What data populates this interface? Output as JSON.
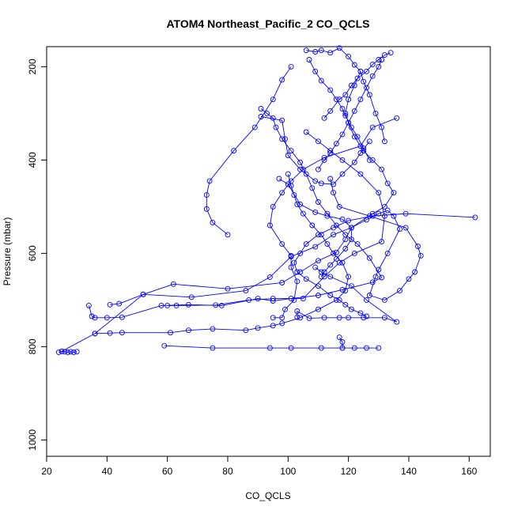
{
  "chart_data": {
    "type": "line",
    "title": "ATOM4 Northeast_Pacific_2 CO_QCLS",
    "xlabel": "CO_QCLS",
    "ylabel": "Pressure (mbar)",
    "xlim": [
      20,
      167
    ],
    "ylim": [
      1035,
      157
    ],
    "y_reversed": true,
    "x_ticks": [
      20,
      40,
      60,
      80,
      100,
      120,
      140,
      160
    ],
    "y_ticks": [
      200,
      400,
      600,
      800,
      1000
    ],
    "series_color": "#0000ff",
    "marker": "open-circle",
    "grid": false,
    "series": [
      {
        "x": [
          24,
          25,
          26,
          27,
          28,
          29,
          30
        ],
        "y": [
          812,
          810,
          811,
          812,
          811,
          812,
          811
        ]
      },
      {
        "x": [
          25,
          36,
          52,
          62,
          80,
          98,
          104,
          110,
          116,
          119,
          121,
          126,
          130,
          133,
          135,
          137,
          133,
          130,
          129,
          127,
          132,
          137,
          140,
          142,
          144,
          143,
          139,
          127,
          117,
          115,
          114
        ],
        "y": [
          810,
          772,
          688,
          666,
          676,
          663,
          640,
          616,
          598,
          570,
          545,
          528,
          515,
          508,
          520,
          548,
          600,
          635,
          650,
          690,
          700,
          680,
          655,
          640,
          605,
          585,
          545,
          520,
          500,
          470,
          440
        ]
      },
      {
        "x": [
          36,
          41,
          45,
          61,
          67,
          75,
          86,
          90,
          95,
          98,
          104,
          110,
          116,
          119,
          120,
          118,
          115,
          113,
          111,
          108,
          105,
          103,
          102,
          101,
          100
        ],
        "y": [
          772,
          771,
          770,
          770,
          765,
          762,
          765,
          760,
          755,
          750,
          738,
          720,
          700,
          680,
          650,
          620,
          600,
          580,
          560,
          540,
          515,
          495,
          475,
          455,
          430
        ]
      },
      {
        "x": [
          34,
          35,
          36,
          40,
          45,
          58,
          67,
          78,
          90,
          95,
          101,
          110,
          118,
          128,
          131,
          127,
          123,
          119,
          116,
          113,
          110,
          108,
          106,
          104,
          101,
          98,
          96,
          95,
          93,
          91
        ],
        "y": [
          712,
          735,
          738,
          738,
          737,
          712,
          710,
          712,
          697,
          702,
          697,
          690,
          678,
          662,
          652,
          610,
          580,
          560,
          540,
          515,
          490,
          460,
          430,
          405,
          380,
          355,
          330,
          310,
          300,
          290
        ]
      },
      {
        "x": [
          41,
          44,
          52,
          68,
          86,
          94,
          101,
          109,
          115,
          121,
          128,
          132,
          135,
          133,
          131,
          128,
          125,
          122,
          120,
          119,
          120,
          122,
          124
        ],
        "y": [
          710,
          708,
          688,
          694,
          680,
          651,
          607,
          586,
          560,
          545,
          515,
          500,
          470,
          450,
          420,
          400,
          380,
          350,
          320,
          300,
          270,
          240,
          210
        ]
      },
      {
        "x": [
          60,
          63,
          76,
          87,
          95,
          105,
          112,
          117,
          122,
          131,
          132,
          130,
          124,
          118,
          114,
          110,
          106
        ],
        "y": [
          712,
          712,
          711,
          700,
          697,
          697,
          650,
          620,
          600,
          575,
          520,
          470,
          430,
          400,
          380,
          360,
          340
        ]
      },
      {
        "x": [
          59,
          75,
          94,
          101,
          111,
          118,
          122,
          126,
          130
        ],
        "y": [
          798,
          803,
          803,
          803,
          803,
          803,
          803,
          803,
          803
        ]
      },
      {
        "x": [
          118,
          118,
          117
        ],
        "y": [
          803,
          790,
          780
        ]
      },
      {
        "x": [
          103,
          103,
          107,
          112,
          117,
          120,
          125,
          132,
          136,
          126,
          121,
          114,
          111,
          109
        ],
        "y": [
          737,
          724,
          739,
          738,
          738,
          738,
          738,
          738,
          747,
          700,
          670,
          650,
          640,
          630
        ]
      },
      {
        "x": [
          95,
          98,
          99,
          102,
          103,
          101,
          101,
          98,
          94,
          95,
          98,
          101,
          105,
          112,
          124,
          128,
          136
        ],
        "y": [
          738,
          738,
          720,
          700,
          660,
          630,
          605,
          580,
          540,
          500,
          470,
          445,
          420,
          395,
          370,
          330,
          310
        ]
      },
      {
        "x": [
          80,
          75,
          73,
          73,
          74,
          82,
          89,
          95,
          98,
          101
        ],
        "y": [
          560,
          534,
          505,
          475,
          445,
          380,
          330,
          270,
          228,
          200
        ]
      },
      {
        "x": [
          91,
          98,
          99,
          100,
          104,
          109,
          111,
          115,
          118,
          122,
          124,
          127
        ],
        "y": [
          307,
          315,
          355,
          390,
          420,
          445,
          450,
          452,
          430,
          405,
          385,
          360
        ]
      },
      {
        "x": [
          162,
          139,
          128,
          120,
          115,
          110,
          106,
          104,
          102,
          103,
          106,
          110,
          114,
          117,
          119,
          121,
          124,
          126
        ],
        "y": [
          523,
          515,
          520,
          530,
          545,
          560,
          580,
          600,
          620,
          640,
          655,
          670,
          690,
          700,
          710,
          720,
          728,
          735
        ]
      },
      {
        "x": [
          97,
          100,
          104,
          109,
          113,
          118,
          121,
          121,
          119,
          116,
          114,
          112,
          111
        ],
        "y": [
          440,
          452,
          495,
          512,
          520,
          527,
          545,
          570,
          590,
          612,
          625,
          640,
          650
        ]
      },
      {
        "x": [
          106,
          109,
          111,
          114,
          117,
          120,
          122,
          124,
          125,
          127,
          129,
          131,
          132
        ],
        "y": [
          165,
          168,
          165,
          170,
          160,
          178,
          196,
          210,
          232,
          260,
          300,
          330,
          360
        ]
      },
      {
        "x": [
          107,
          109,
          111,
          114,
          116,
          118,
          119,
          121,
          123,
          125,
          127
        ],
        "y": [
          185,
          210,
          230,
          250,
          270,
          290,
          305,
          330,
          350,
          375,
          400
        ]
      },
      {
        "x": [
          112,
          114,
          117,
          119,
          121,
          123,
          126,
          128,
          130,
          132,
          134
        ],
        "y": [
          310,
          295,
          270,
          260,
          240,
          225,
          210,
          195,
          185,
          175,
          170
        ]
      },
      {
        "x": [
          110,
          112,
          114,
          116,
          118,
          120,
          122,
          124,
          126,
          128,
          130,
          131
        ],
        "y": [
          420,
          400,
          385,
          365,
          345,
          320,
          295,
          270,
          245,
          220,
          200,
          185
        ]
      }
    ]
  }
}
